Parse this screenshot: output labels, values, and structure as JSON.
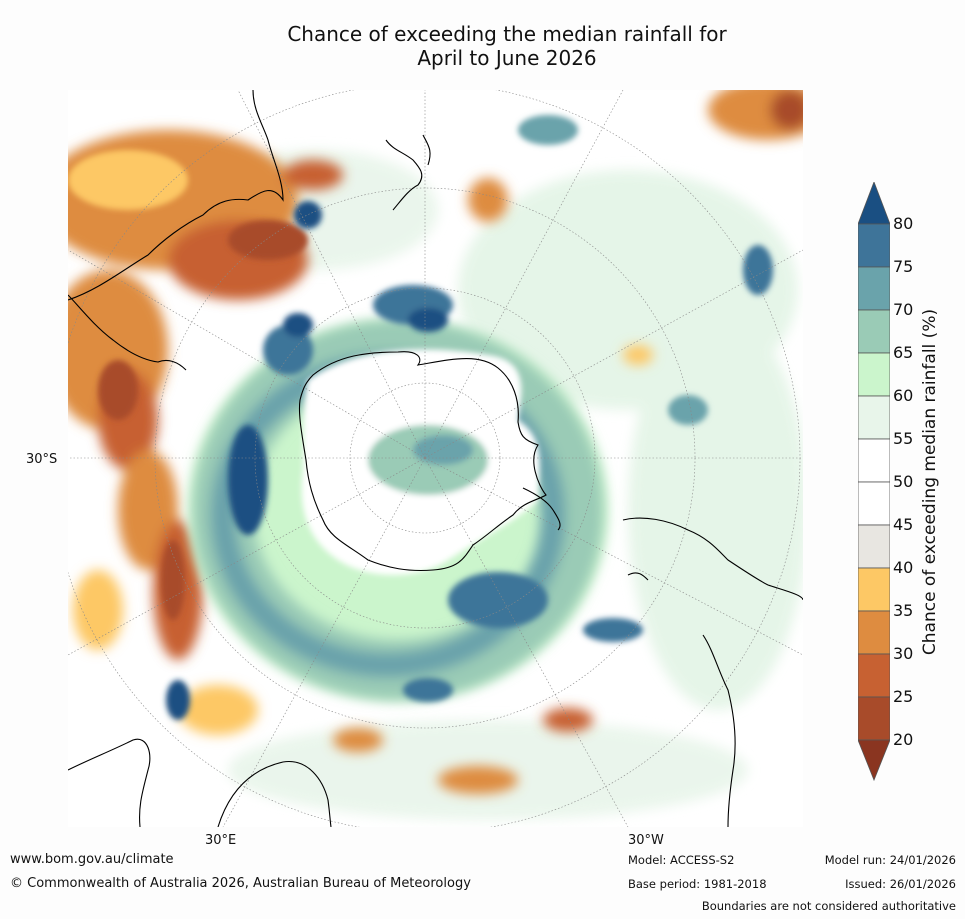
{
  "title_line1": "Chance of exceeding the median rainfall for",
  "title_line2": "April to June 2026",
  "axis_labels": {
    "lat": "30°S",
    "lon_east": "30°E",
    "lon_west": "30°W"
  },
  "colorbar": {
    "title": "Chance of exceeding median rainfall (%)",
    "ticks": [
      "80",
      "75",
      "70",
      "65",
      "60",
      "55",
      "50",
      "45",
      "40",
      "35",
      "30",
      "25",
      "20"
    ],
    "colors": {
      "above_80": "#1a4f82",
      "75_80": "#3e7499",
      "70_75": "#6aa3ab",
      "65_70": "#9acbb6",
      "60_65": "#cbf5cc",
      "55_60": "#e8f5ea",
      "50_55": "#ffffff",
      "45_50": "#ffffff",
      "40_45": "#e8e6e1",
      "35_40": "#fdc865",
      "30_35": "#de8c40",
      "25_30": "#c76132",
      "20_25": "#a84b2a",
      "below_20": "#8a3520"
    }
  },
  "footer": {
    "website": "www.bom.gov.au/climate",
    "copyright": "© Commonwealth of Australia 2026, Australian Bureau of Meteorology",
    "model": "Model: ACCESS-S2",
    "base_period": "Base period: 1981-2018",
    "model_run": "Model run: 24/01/2026",
    "issued": "Issued: 26/01/2026",
    "disclaimer": "Boundaries are not considered authoritative"
  }
}
